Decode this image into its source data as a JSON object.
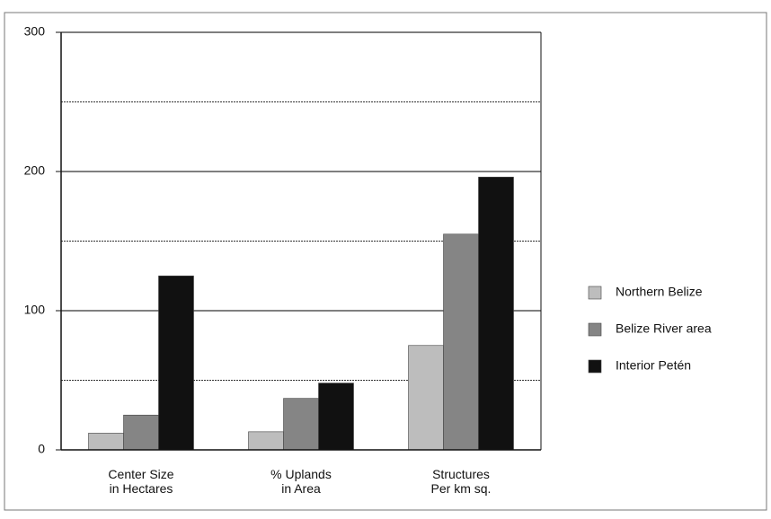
{
  "chart_data": {
    "type": "bar",
    "categories": [
      "Center Size\nin Hectares",
      "% Uplands\nin Area",
      "Structures\nPer km sq."
    ],
    "series": [
      {
        "name": "Northern Belize",
        "color": "#bdbdbd",
        "values": [
          12,
          13,
          75
        ]
      },
      {
        "name": "Belize River area",
        "color": "#858585",
        "values": [
          25,
          37,
          155
        ]
      },
      {
        "name": "Interior Petén",
        "color": "#111111",
        "values": [
          125,
          48,
          196
        ]
      }
    ],
    "ylim": [
      0,
      300
    ],
    "yticks": [
      0,
      100,
      200,
      300
    ],
    "minor_grid": [
      50,
      150,
      250
    ],
    "grid": true,
    "legend": "right"
  }
}
